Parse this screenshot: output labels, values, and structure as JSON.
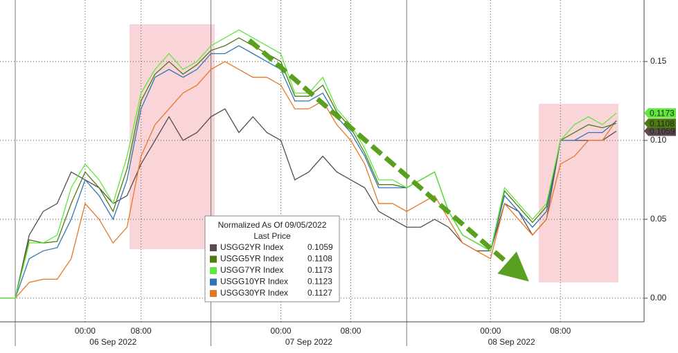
{
  "chart_data": {
    "type": "line",
    "categories": [
      null,
      null,
      null,
      null,
      null,
      "00:00",
      null,
      null,
      null,
      "08:00",
      null,
      null,
      null,
      null,
      null,
      null,
      null,
      null,
      null,
      "00:00",
      null,
      null,
      null,
      null,
      "08:00",
      null,
      null,
      null,
      null,
      null,
      null,
      null,
      null,
      null,
      "00:00",
      null,
      null,
      null,
      null,
      "08:00",
      null,
      null,
      null,
      null
    ],
    "x_groups": [
      {
        "label": "06 Sep 2022",
        "start": 0,
        "end": 14
      },
      {
        "label": "07 Sep 2022",
        "start": 14,
        "end": 28
      },
      {
        "label": "08 Sep 2022",
        "start": 28,
        "end": 43
      }
    ],
    "ylim": [
      -0.015,
      0.189
    ],
    "yticks": [
      {
        "value": 0,
        "label": "0.00"
      },
      {
        "value": 0.05,
        "label": "0.05"
      },
      {
        "value": 0.1,
        "label": "0.10"
      },
      {
        "value": 0.15,
        "label": "0.15"
      }
    ],
    "grid": true,
    "legend_title": "Normalized As Of 09/05/2022",
    "legend_subtitle": "Last Price",
    "series": [
      {
        "name": "USGG2YR Index",
        "color": "#5a4a4a",
        "end_label": true,
        "values": [
          0,
          0.04,
          0.055,
          0.06,
          0.08,
          0.075,
          0.07,
          0.06,
          0.065,
          0.085,
          0.1,
          0.115,
          0.1,
          0.105,
          0.115,
          0.12,
          0.105,
          0.115,
          0.105,
          0.1,
          0.075,
          0.08,
          0.09,
          0.08,
          0.075,
          0.07,
          0.055,
          0.05,
          0.045,
          0.045,
          0.05,
          0.045,
          0.035,
          0.03,
          0.03,
          0.06,
          0.055,
          0.04,
          0.05,
          0.1,
          0.1,
          0.1,
          0.1,
          0.1059
        ]
      },
      {
        "name": "USGG5YR Index",
        "color": "#4e7a12",
        "end_label": true,
        "values": [
          0,
          0.037,
          0.035,
          0.036,
          0.06,
          0.08,
          0.07,
          0.055,
          0.082,
          0.125,
          0.142,
          0.15,
          0.142,
          0.148,
          0.157,
          0.16,
          0.165,
          0.16,
          0.155,
          0.15,
          0.128,
          0.128,
          0.135,
          0.118,
          0.108,
          0.092,
          0.072,
          0.072,
          0.07,
          0.075,
          0.08,
          0.055,
          0.04,
          0.035,
          0.03,
          0.068,
          0.058,
          0.048,
          0.058,
          0.1,
          0.105,
          0.11,
          0.108,
          0.1108
        ]
      },
      {
        "name": "USGG7YR Index",
        "color": "#5ee83a",
        "end_label": true,
        "values": [
          0,
          0.035,
          0.035,
          0.04,
          0.07,
          0.085,
          0.075,
          0.06,
          0.09,
          0.13,
          0.145,
          0.155,
          0.145,
          0.15,
          0.16,
          0.165,
          0.17,
          0.165,
          0.16,
          0.155,
          0.13,
          0.13,
          0.14,
          0.12,
          0.11,
          0.095,
          0.075,
          0.075,
          0.07,
          0.075,
          0.08,
          0.055,
          0.04,
          0.035,
          0.03,
          0.07,
          0.06,
          0.05,
          0.06,
          0.1,
          0.11,
          0.115,
          0.11,
          0.1173
        ]
      },
      {
        "name": "USGG10YR Index",
        "color": "#2e75b6",
        "end_label": false,
        "values": [
          0,
          0.025,
          0.03,
          0.032,
          0.05,
          0.075,
          0.065,
          0.05,
          0.075,
          0.12,
          0.14,
          0.145,
          0.14,
          0.145,
          0.155,
          0.155,
          0.16,
          0.155,
          0.15,
          0.145,
          0.125,
          0.125,
          0.13,
          0.115,
          0.105,
          0.09,
          0.07,
          0.07,
          0.07,
          0.075,
          0.08,
          0.055,
          0.04,
          0.035,
          0.03,
          0.065,
          0.055,
          0.045,
          0.055,
          0.1,
          0.1,
          0.105,
          0.105,
          0.1123
        ]
      },
      {
        "name": "USGG30YR Index",
        "color": "#e87722",
        "end_label": false,
        "values": [
          0,
          0.01,
          0.012,
          0.012,
          0.025,
          0.06,
          0.05,
          0.035,
          0.045,
          0.09,
          0.11,
          0.12,
          0.13,
          0.135,
          0.145,
          0.15,
          0.145,
          0.14,
          0.14,
          0.135,
          0.12,
          0.12,
          0.125,
          0.11,
          0.1,
          0.085,
          0.06,
          0.06,
          0.055,
          0.06,
          0.065,
          0.05,
          0.035,
          0.03,
          0.025,
          0.06,
          0.05,
          0.04,
          0.05,
          0.085,
          0.09,
          0.1,
          0.1,
          0.1127
        ]
      }
    ]
  }
}
